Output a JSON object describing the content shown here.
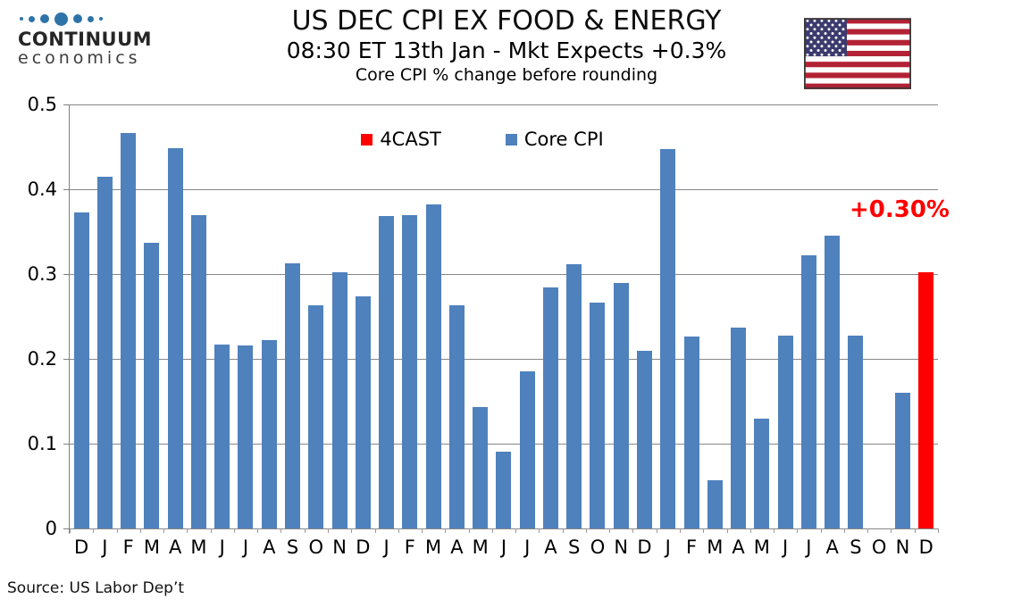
{
  "header": {
    "title": "US DEC CPI EX FOOD & ENERGY",
    "subtitle": "08:30 ET 13th Jan - Mkt Expects +0.3%",
    "note": "Core CPI % change before rounding"
  },
  "logo": {
    "line1": "CONTINUUM",
    "line2": "economics",
    "dot_color": "#2E73A7"
  },
  "flag": {
    "name": "us-flag",
    "stripe_red": "#B22234",
    "canton_blue": "#3C3B6E",
    "star_white": "#FFFFFF",
    "border": "#3a3a3a"
  },
  "legend": {
    "items": [
      {
        "label": "4CAST",
        "color": "#FF0000"
      },
      {
        "label": "Core CPI",
        "color": "#4F81BD"
      }
    ]
  },
  "annotation": {
    "text": "+0.30%",
    "color": "#FF0000"
  },
  "footer": {
    "source": "Source: US Labor Dep’t"
  },
  "chart_data": {
    "type": "bar",
    "title": "US DEC CPI EX FOOD & ENERGY",
    "xlabel": "",
    "ylabel": "",
    "ylim": [
      0,
      0.5
    ],
    "yticks_top_to_bottom": [
      "0.5",
      "0.4",
      "0.3",
      "0.2",
      "0.1",
      "0"
    ],
    "grid": true,
    "legend_position": "top-center",
    "categories": [
      "D",
      "J",
      "F",
      "M",
      "A",
      "M",
      "J",
      "J",
      "A",
      "S",
      "O",
      "N",
      "D",
      "J",
      "F",
      "M",
      "A",
      "M",
      "J",
      "J",
      "A",
      "S",
      "O",
      "N",
      "D",
      "J",
      "F",
      "M",
      "A",
      "M",
      "J",
      "J",
      "A",
      "S",
      "O",
      "N",
      "D"
    ],
    "series": [
      {
        "name": "Core CPI",
        "color": "#4F81BD",
        "values": [
          0.373,
          0.415,
          0.466,
          0.337,
          0.448,
          0.369,
          0.217,
          0.216,
          0.222,
          0.313,
          0.263,
          0.302,
          0.274,
          0.368,
          0.37,
          0.382,
          0.263,
          0.143,
          0.091,
          0.185,
          0.284,
          0.312,
          0.266,
          0.29,
          0.21,
          0.447,
          0.226,
          0.057,
          0.237,
          0.13,
          0.227,
          0.322,
          0.345,
          0.227,
          null,
          0.16,
          null
        ]
      },
      {
        "name": "4CAST",
        "color": "#FF0000",
        "values": [
          null,
          null,
          null,
          null,
          null,
          null,
          null,
          null,
          null,
          null,
          null,
          null,
          null,
          null,
          null,
          null,
          null,
          null,
          null,
          null,
          null,
          null,
          null,
          null,
          null,
          null,
          null,
          null,
          null,
          null,
          null,
          null,
          null,
          null,
          null,
          null,
          0.302
        ]
      }
    ]
  }
}
